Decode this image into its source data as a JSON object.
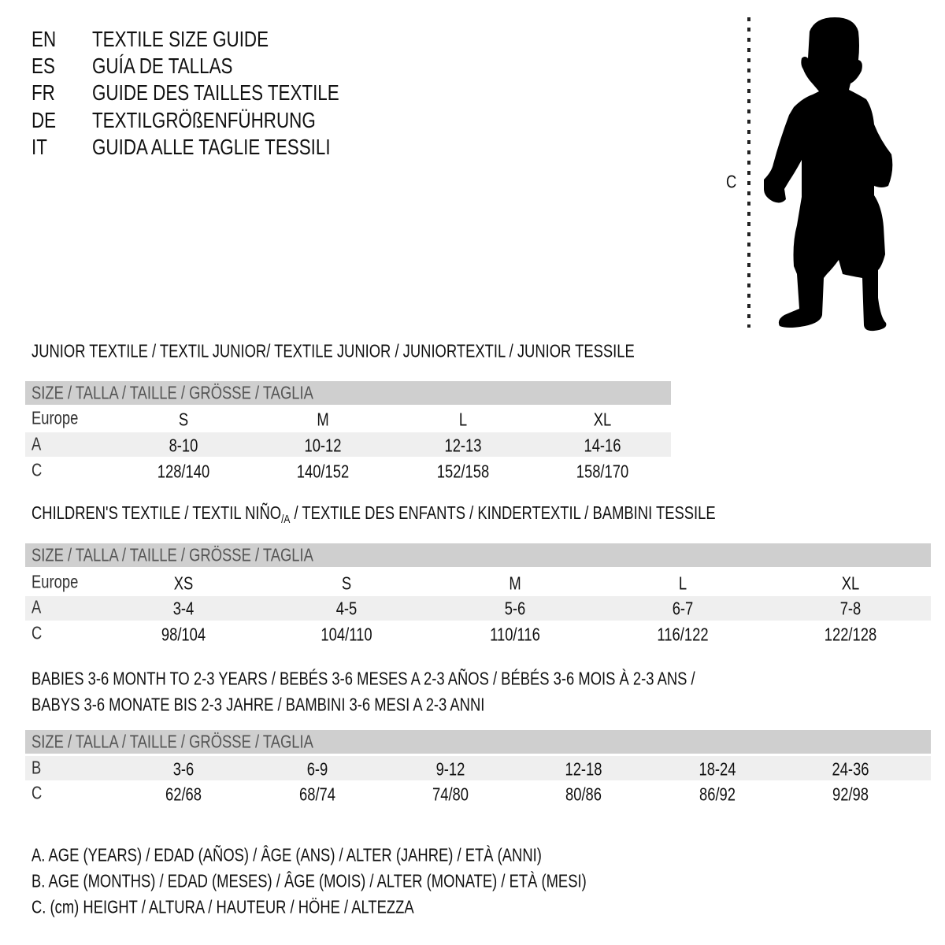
{
  "header": {
    "lines": [
      {
        "code": "EN",
        "text": "TEXTILE SIZE GUIDE"
      },
      {
        "code": "ES",
        "text": "GUÍA DE TALLAS"
      },
      {
        "code": "FR",
        "text": "GUIDE DES TAILLES TEXTILE"
      },
      {
        "code": "DE",
        "text": "TEXTILGRÖßENFÜHRUNG"
      },
      {
        "code": "IT",
        "text": "GUIDA ALLE TAGLIE TESSILI"
      }
    ]
  },
  "figure": {
    "icon": "child-silhouette-icon",
    "measure_label": "C"
  },
  "junior": {
    "title": "JUNIOR TEXTILE / TEXTIL JUNIOR/ TEXTILE JUNIOR / JUNIORTEXTIL / JUNIOR TESSILE",
    "size_header": "SIZE / TALLA / TAILLE / GRÖSSE / TAGLIA",
    "rows": [
      {
        "label": "Europe",
        "values": [
          "S",
          "M",
          "L",
          "XL"
        ]
      },
      {
        "label": "A",
        "values": [
          "8-10",
          "10-12",
          "12-13",
          "14-16"
        ]
      },
      {
        "label": "C",
        "values": [
          "128/140",
          "140/152",
          "152/158",
          "158/170"
        ]
      }
    ]
  },
  "children": {
    "title_main": "CHILDREN'S TEXTILE / TEXTIL NIÑO",
    "title_sub": "/A",
    "title_rest": " / TEXTILE DES ENFANTS / KINDERTEXTIL / BAMBINI TESSILE",
    "size_header": "SIZE / TALLA / TAILLE / GRÖSSE / TAGLIA",
    "rows": [
      {
        "label": "Europe",
        "values": [
          "XS",
          "S",
          "M",
          "L",
          "XL"
        ]
      },
      {
        "label": "A",
        "values": [
          "3-4",
          "4-5",
          "5-6",
          "6-7",
          "7-8"
        ]
      },
      {
        "label": "C",
        "values": [
          "98/104",
          "104/110",
          "110/116",
          "116/122",
          "122/128"
        ]
      }
    ]
  },
  "babies": {
    "title_line1": "BABIES 3-6 MONTH TO 2-3 YEARS / BEBÉS 3-6 MESES A 2-3 AÑOS / BÉBÉS 3-6 MOIS À 2-3 ANS /",
    "title_line2": "BABYS 3-6 MONATE BIS 2-3 JAHRE / BAMBINI 3-6 MESI A 2-3 ANNI",
    "size_header": "SIZE / TALLA / TAILLE / GRÖSSE / TAGLIA",
    "rows": [
      {
        "label": "B",
        "values": [
          "3-6",
          "6-9",
          "9-12",
          "12-18",
          "18-24",
          "24-36"
        ]
      },
      {
        "label": "C",
        "values": [
          "62/68",
          "68/74",
          "74/80",
          "80/86",
          "86/92",
          "92/98"
        ]
      }
    ]
  },
  "legend": [
    "A. AGE (YEARS) / EDAD (AÑOS) / ÂGE (ANS) / ALTER (JAHRE) / ETÀ (ANNI)",
    "B. AGE (MONTHS) / EDAD (MESES) / ÂGE (MOIS) / ALTER (MONATE) / ETÀ (MESI)",
    "C. (cm) HEIGHT / ALTURA / HAUTEUR / HÖHE / ALTEZZA"
  ]
}
